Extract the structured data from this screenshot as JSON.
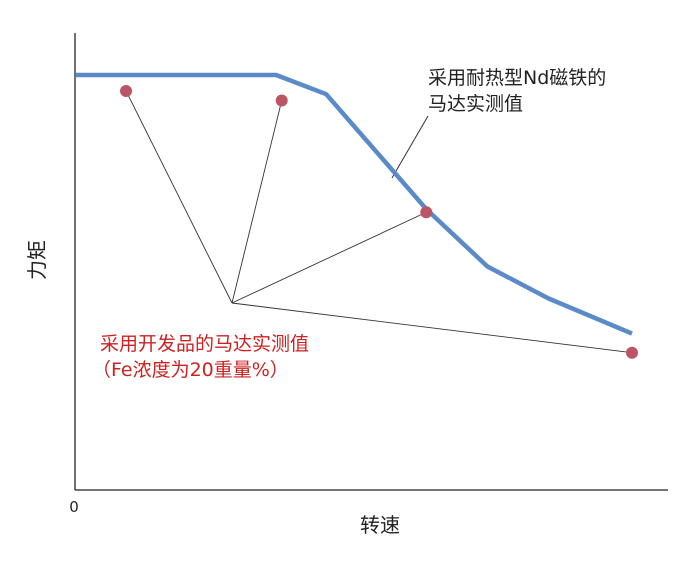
{
  "chart_data": {
    "type": "line",
    "xlabel": "转速",
    "ylabel": "力矩",
    "x_origin_label": "0",
    "colors": {
      "series_line": "#5b8ac8",
      "points": "#bb5566",
      "axis": "#222222",
      "leader": "#333333",
      "label_red": "#cc2222",
      "label_black": "#222222"
    },
    "series": [
      {
        "name": "采用耐热型Nd磁铁的马达实测值",
        "label_lines": [
          "采用耐热型Nd磁铁的",
          "马达实测值"
        ],
        "points": [
          [
            0,
            100
          ],
          [
            36,
            100
          ],
          [
            45,
            94
          ],
          [
            63,
            58
          ],
          [
            74,
            40
          ],
          [
            85,
            30
          ],
          [
            100,
            19
          ]
        ]
      },
      {
        "name": "采用开发品的马达实测值（Fe浓度为20重量%）",
        "label_lines": [
          "采用开发品的马达实测值",
          "（Fe浓度为20重量%）"
        ],
        "points": [
          [
            9,
            95
          ],
          [
            37,
            92
          ],
          [
            63,
            57
          ],
          [
            100,
            13
          ]
        ]
      }
    ],
    "xlim": [
      0,
      100
    ],
    "ylim": [
      -30,
      100
    ],
    "grid": false,
    "legend": "none"
  }
}
